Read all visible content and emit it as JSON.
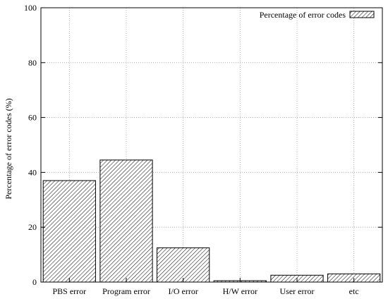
{
  "chart_data": {
    "type": "bar",
    "title": "",
    "xlabel": "",
    "ylabel": "Percentage of error codes (%)",
    "categories": [
      "PBS error",
      "Program error",
      "I/O error",
      "H/W error",
      "User error",
      "etc"
    ],
    "series": [
      {
        "name": "Percentage of error codes",
        "values": [
          37,
          44.5,
          12.5,
          0.5,
          2.5,
          3
        ]
      }
    ],
    "ylim": [
      0,
      100
    ],
    "yticks": [
      "0",
      "20",
      "40",
      "60",
      "80",
      "100"
    ],
    "grid": true,
    "legend": "top-right",
    "colors": {
      "bar_fill": "#ffffff",
      "bar_hatch": "#000000",
      "grid": "#999999",
      "axis": "#000000"
    }
  }
}
